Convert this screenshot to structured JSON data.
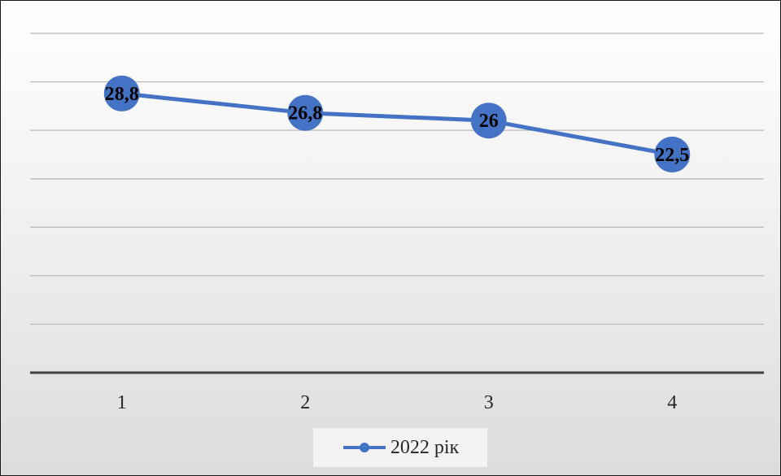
{
  "chart_data": {
    "type": "line",
    "categories": [
      "1",
      "2",
      "3",
      "4"
    ],
    "series": [
      {
        "name": "2022 рік",
        "values": [
          28.8,
          26.8,
          26,
          22.5
        ],
        "color": "#4472c4"
      }
    ],
    "data_labels": [
      "28,8",
      "26,8",
      "26",
      "22,5"
    ],
    "ylim": [
      0,
      35
    ],
    "grid": true,
    "y_tick_labels_shown": false,
    "legend": {
      "position": "bottom",
      "label": "2022 рік"
    },
    "title": "",
    "xlabel": "",
    "ylabel": ""
  }
}
